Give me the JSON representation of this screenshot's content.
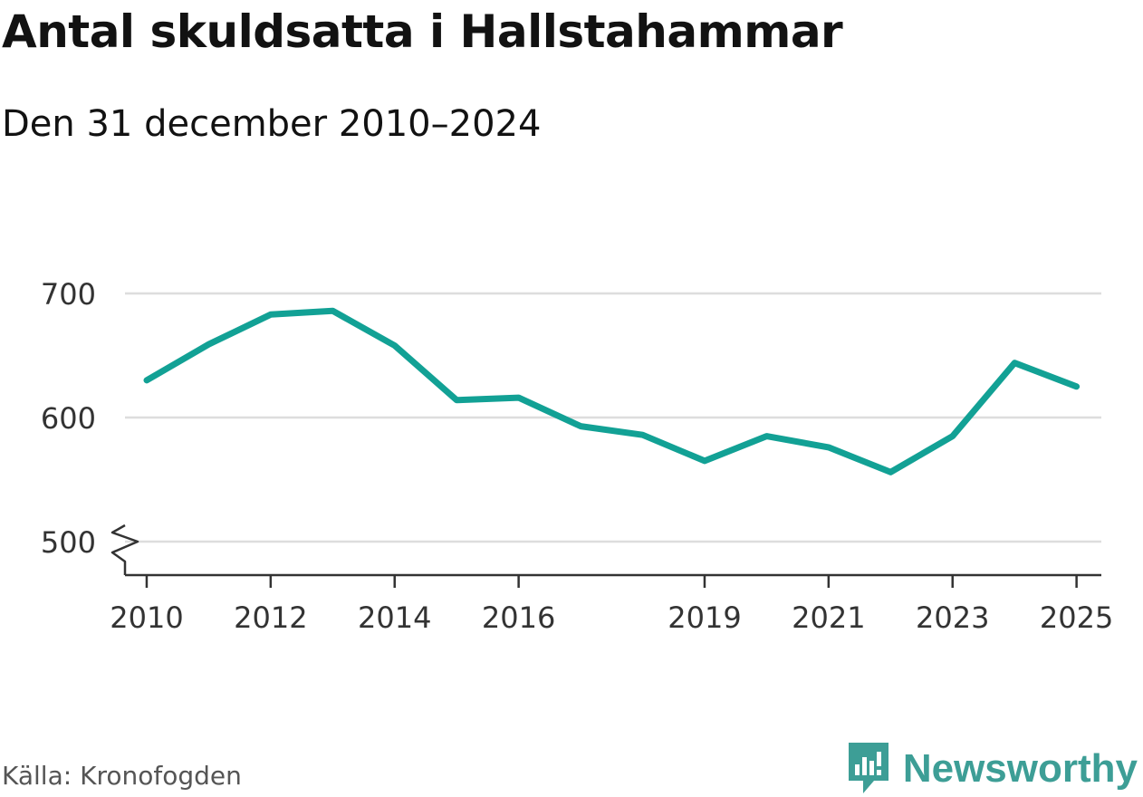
{
  "header": {
    "title": "Antal skuldsatta i Hallstahammar",
    "subtitle": "Den 31 december 2010–2024"
  },
  "footer": {
    "source": "Källa: Kronofogden",
    "brand": "Newsworthy"
  },
  "colors": {
    "line": "#12a195",
    "brand": "#3d9e96",
    "grid": "#dddddd",
    "axis": "#333333",
    "tick_text": "#333333"
  },
  "chart_data": {
    "type": "line",
    "title": "Antal skuldsatta i Hallstahammar",
    "subtitle": "Den 31 december 2010–2024",
    "xlabel": "",
    "ylabel": "",
    "xlim": [
      2009.65,
      2025.4
    ],
    "ylim": [
      474,
      700
    ],
    "y_axis_break": true,
    "x_ticks": [
      2010,
      2012,
      2014,
      2016,
      2019,
      2021,
      2023,
      2025
    ],
    "y_ticks": [
      500,
      600,
      700
    ],
    "grid": true,
    "legend": "none",
    "series": [
      {
        "name": "Antal skuldsatta",
        "x": [
          2010,
          2011,
          2012,
          2013,
          2014,
          2015,
          2016,
          2017,
          2018,
          2019,
          2020,
          2021,
          2022,
          2023,
          2024,
          2025
        ],
        "values": [
          630,
          659,
          683,
          686,
          658,
          614,
          616,
          593,
          586,
          565,
          585,
          576,
          556,
          585,
          644,
          625
        ]
      }
    ]
  }
}
